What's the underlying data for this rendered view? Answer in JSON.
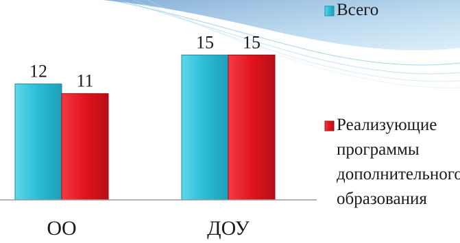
{
  "chart_data": {
    "type": "bar",
    "categories": [
      "ОО",
      "ДОУ"
    ],
    "series": [
      {
        "name": "Всего",
        "values": [
          12,
          15
        ],
        "color": "#2bbcd4"
      },
      {
        "name": "Реализующие программы дополнительного образования",
        "values": [
          11,
          15
        ],
        "color": "#e0141e"
      }
    ],
    "legend": {
      "placement": "right",
      "entries": [
        {
          "lines": [
            "Всего"
          ],
          "color": "#2bbcd4"
        },
        {
          "lines": [
            "Реализующие",
            "программы",
            "дополнительного",
            "образования"
          ],
          "color": "#e0141e"
        }
      ]
    },
    "ylim": [
      0,
      17.5
    ],
    "grid": false,
    "data_labels": true
  }
}
